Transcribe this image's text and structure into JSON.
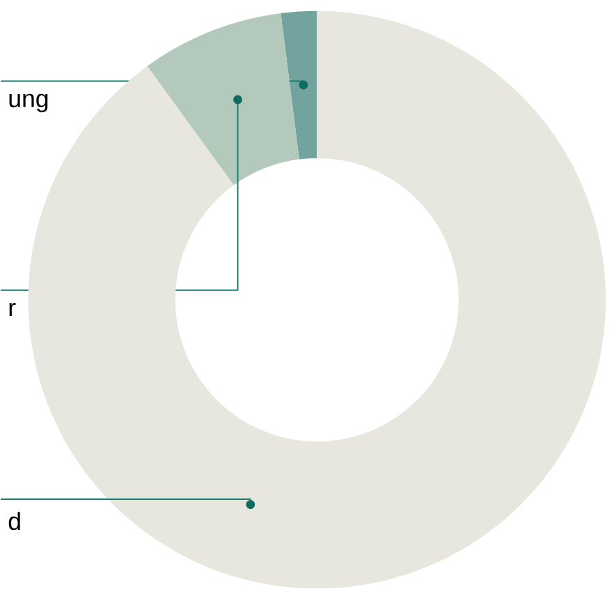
{
  "chart_data": {
    "type": "donut",
    "categories": [
      "ung",
      "r",
      "d"
    ],
    "values": [
      2,
      8,
      90
    ],
    "colors": [
      "#73a39e",
      "#b3c9bc",
      "#e8e7df"
    ]
  }
}
